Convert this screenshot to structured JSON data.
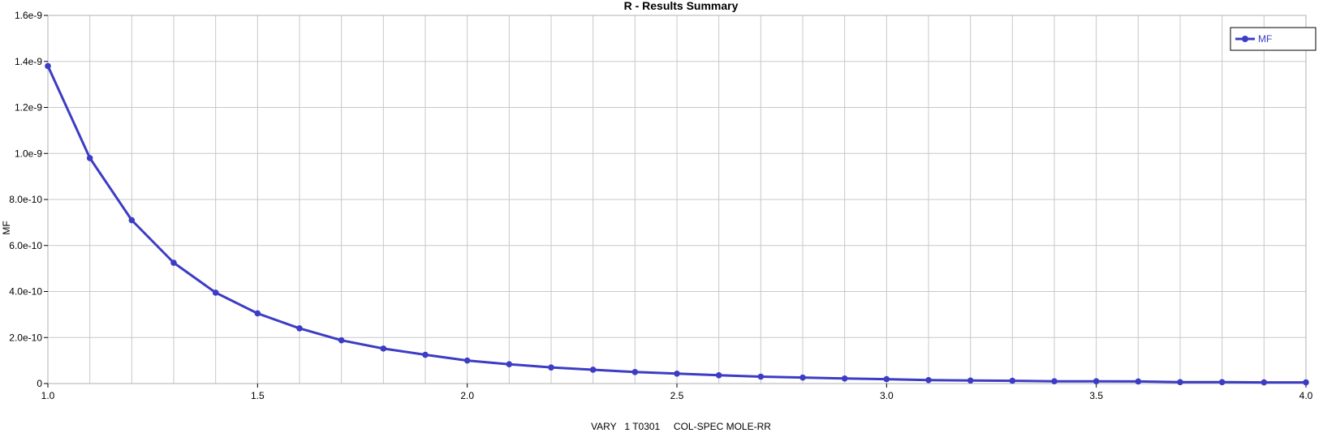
{
  "chart_data": {
    "type": "line",
    "title": "R - Results Summary",
    "xlabel": "VARY   1 T0301     COL-SPEC MOLE-RR",
    "ylabel": "MF",
    "xlim": [
      1.0,
      4.0
    ],
    "ylim": [
      0,
      1.6e-09
    ],
    "x_ticks": [
      1.0,
      1.5,
      2.0,
      2.5,
      3.0,
      3.5,
      4.0
    ],
    "x_tick_labels": [
      "1.0",
      "1.5",
      "2.0",
      "2.5",
      "3.0",
      "3.5",
      "4.0"
    ],
    "y_ticks": [
      0,
      2e-10,
      4e-10,
      6e-10,
      8e-10,
      1e-09,
      1.2e-09,
      1.4e-09,
      1.6e-09
    ],
    "y_tick_labels": [
      "0",
      "2.0e-10",
      "4.0e-10",
      "6.0e-10",
      "8.0e-10",
      "1.0e-9",
      "1.2e-9",
      "1.4e-9",
      "1.6e-9"
    ],
    "grid": true,
    "legend_position": "top-right",
    "x": [
      1.0,
      1.1,
      1.2,
      1.3,
      1.4,
      1.5,
      1.6,
      1.7,
      1.8,
      1.9,
      2.0,
      2.1,
      2.2,
      2.3,
      2.4,
      2.5,
      2.6,
      2.7,
      2.8,
      2.9,
      3.0,
      3.1,
      3.2,
      3.3,
      3.4,
      3.5,
      3.6,
      3.7,
      3.8,
      3.9,
      4.0
    ],
    "series": [
      {
        "name": "MF",
        "color": "#3c3cc4",
        "values": [
          1.38e-09,
          9.8e-10,
          7.1e-10,
          5.25e-10,
          3.95e-10,
          3.05e-10,
          2.4e-10,
          1.88e-10,
          1.52e-10,
          1.25e-10,
          1e-10,
          8.4e-11,
          7e-11,
          6e-11,
          5e-11,
          4.3e-11,
          3.6e-11,
          3e-11,
          2.6e-11,
          2.2e-11,
          1.9e-11,
          1.5e-11,
          1.3e-11,
          1.2e-11,
          1e-11,
          1e-11,
          9e-12,
          6e-12,
          6e-12,
          5e-12,
          5e-12
        ]
      }
    ]
  }
}
